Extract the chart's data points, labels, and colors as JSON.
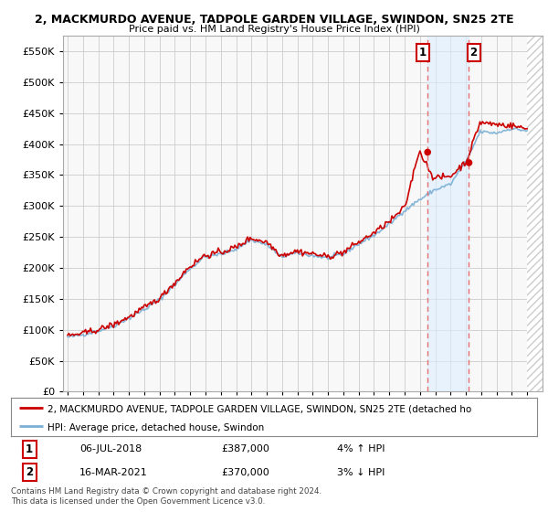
{
  "title": "2, MACKMURDO AVENUE, TADPOLE GARDEN VILLAGE, SWINDON, SN25 2TE",
  "subtitle": "Price paid vs. HM Land Registry's House Price Index (HPI)",
  "legend_line1": "2, MACKMURDO AVENUE, TADPOLE GARDEN VILLAGE, SWINDON, SN25 2TE (detached ho",
  "legend_line2": "HPI: Average price, detached house, Swindon",
  "annotation1_label": "1",
  "annotation1_date": "06-JUL-2018",
  "annotation1_price": "£387,000",
  "annotation1_hpi": "4% ↑ HPI",
  "annotation2_label": "2",
  "annotation2_date": "16-MAR-2021",
  "annotation2_price": "£370,000",
  "annotation2_hpi": "3% ↓ HPI",
  "footer": "Contains HM Land Registry data © Crown copyright and database right 2024.\nThis data is licensed under the Open Government Licence v3.0.",
  "red_color": "#cc0000",
  "blue_color": "#7aafd4",
  "point1_x": 2018.5,
  "point1_y": 387000,
  "point2_x": 2021.2,
  "point2_y": 370000,
  "ylim": [
    0,
    575000
  ],
  "yticks": [
    0,
    50000,
    100000,
    150000,
    200000,
    250000,
    300000,
    350000,
    400000,
    450000,
    500000,
    550000
  ],
  "xlim_min": 1994.7,
  "xlim_max": 2026.0,
  "background_color": "#ffffff",
  "plot_bg_color": "#f8f8f8",
  "grid_color": "#cccccc",
  "shade_color": "#ddeeff",
  "hatch_color": "#cccccc"
}
